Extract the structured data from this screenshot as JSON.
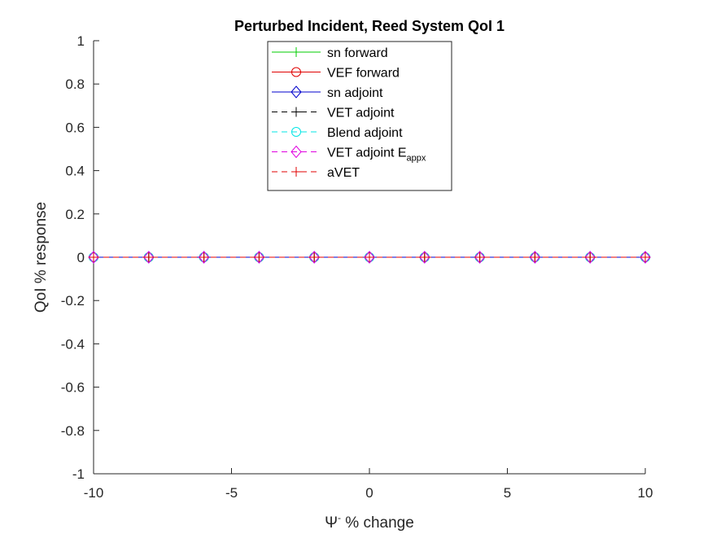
{
  "chart_data": {
    "type": "line",
    "title": "Perturbed Incident, Reed System QoI 1",
    "xlabel_symbol": "Ψ",
    "xlabel_sup": "-",
    "xlabel_rest": " % change",
    "ylabel": "QoI % response",
    "xlim": [
      -10,
      10
    ],
    "ylim": [
      -1,
      1
    ],
    "xticks": [
      -10,
      -5,
      0,
      5,
      10
    ],
    "yticks": [
      -1,
      -0.8,
      -0.6,
      -0.4,
      -0.2,
      0,
      0.2,
      0.4,
      0.6,
      0.8,
      1
    ],
    "grid": false,
    "legend_position": "top-center",
    "x": [
      -10,
      -8,
      -6,
      -4,
      -2,
      0,
      2,
      4,
      6,
      8,
      10
    ],
    "series": [
      {
        "name": "sn forward",
        "color": "#00cc00",
        "dash": "solid",
        "marker": "plus",
        "values": [
          0,
          0,
          0,
          0,
          0,
          0,
          0,
          0,
          0,
          0,
          0
        ]
      },
      {
        "name": "VEF forward",
        "color": "#e00000",
        "dash": "solid",
        "marker": "circle",
        "values": [
          0,
          0,
          0,
          0,
          0,
          0,
          0,
          0,
          0,
          0,
          0
        ]
      },
      {
        "name": "sn adjoint",
        "color": "#0000cc",
        "dash": "solid",
        "marker": "diamond",
        "values": [
          0,
          0,
          0,
          0,
          0,
          0,
          0,
          0,
          0,
          0,
          0
        ]
      },
      {
        "name": "VET adjoint",
        "color": "#000000",
        "dash": "dashed",
        "marker": "plus",
        "values": [
          0,
          0,
          0,
          0,
          0,
          0,
          0,
          0,
          0,
          0,
          0
        ]
      },
      {
        "name": "Blend adjoint",
        "color": "#00e5e5",
        "dash": "dashed",
        "marker": "circle",
        "values": [
          0,
          0,
          0,
          0,
          0,
          0,
          0,
          0,
          0,
          0,
          0
        ]
      },
      {
        "name": "VET adjoint E",
        "name_sub": "appx",
        "color": "#e000e0",
        "dash": "dashed",
        "marker": "diamond",
        "values": [
          0,
          0,
          0,
          0,
          0,
          0,
          0,
          0,
          0,
          0,
          0
        ]
      },
      {
        "name": "aVET",
        "color": "#e00000",
        "dash": "dashed",
        "marker": "plus",
        "values": [
          0,
          0,
          0,
          0,
          0,
          0,
          0,
          0,
          0,
          0,
          0
        ]
      }
    ]
  }
}
